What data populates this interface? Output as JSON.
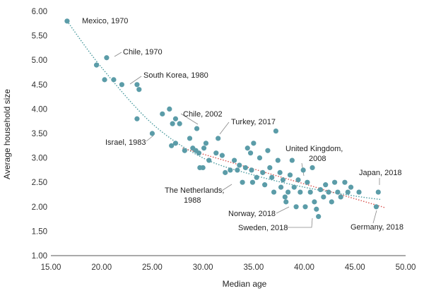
{
  "chart_data": {
    "type": "scatter",
    "title": "",
    "xlabel": "Median age",
    "ylabel": "Average household size",
    "xlim": [
      15,
      50
    ],
    "ylim": [
      1,
      6
    ],
    "grid": false,
    "legend": "none",
    "x_ticks": [
      "15.00",
      "20.00",
      "25.00",
      "30.00",
      "35.00",
      "40.00",
      "45.00",
      "50.00"
    ],
    "y_ticks": [
      "1.00",
      "1.50",
      "2.00",
      "2.50",
      "3.00",
      "3.50",
      "4.00",
      "4.50",
      "5.00",
      "5.50",
      "6.00"
    ],
    "point_color": "#5b9ca8",
    "points": [
      {
        "x": 16.6,
        "y": 5.8
      },
      {
        "x": 19.5,
        "y": 4.9
      },
      {
        "x": 20.5,
        "y": 5.05
      },
      {
        "x": 20.3,
        "y": 4.6
      },
      {
        "x": 21.2,
        "y": 4.6
      },
      {
        "x": 22.0,
        "y": 4.5
      },
      {
        "x": 23.5,
        "y": 4.5
      },
      {
        "x": 23.7,
        "y": 4.4
      },
      {
        "x": 23.5,
        "y": 3.8
      },
      {
        "x": 25.0,
        "y": 3.5
      },
      {
        "x": 26.0,
        "y": 3.9
      },
      {
        "x": 26.7,
        "y": 4.0
      },
      {
        "x": 27.0,
        "y": 3.7
      },
      {
        "x": 27.3,
        "y": 3.8
      },
      {
        "x": 27.7,
        "y": 3.7
      },
      {
        "x": 26.9,
        "y": 3.25
      },
      {
        "x": 27.3,
        "y": 3.3
      },
      {
        "x": 28.2,
        "y": 3.15
      },
      {
        "x": 28.7,
        "y": 3.4
      },
      {
        "x": 29.0,
        "y": 3.2
      },
      {
        "x": 29.4,
        "y": 3.6
      },
      {
        "x": 29.3,
        "y": 3.15
      },
      {
        "x": 29.6,
        "y": 3.1
      },
      {
        "x": 30.1,
        "y": 3.2
      },
      {
        "x": 30.3,
        "y": 3.3
      },
      {
        "x": 29.7,
        "y": 2.8
      },
      {
        "x": 30.0,
        "y": 2.8
      },
      {
        "x": 30.6,
        "y": 2.95
      },
      {
        "x": 31.3,
        "y": 3.1
      },
      {
        "x": 31.5,
        "y": 3.4
      },
      {
        "x": 31.9,
        "y": 3.05
      },
      {
        "x": 32.2,
        "y": 2.7
      },
      {
        "x": 32.7,
        "y": 2.75
      },
      {
        "x": 33.1,
        "y": 2.95
      },
      {
        "x": 33.4,
        "y": 2.75
      },
      {
        "x": 33.6,
        "y": 2.85
      },
      {
        "x": 33.9,
        "y": 2.5
      },
      {
        "x": 34.2,
        "y": 2.8
      },
      {
        "x": 34.4,
        "y": 3.2
      },
      {
        "x": 34.7,
        "y": 3.1
      },
      {
        "x": 35.0,
        "y": 3.3
      },
      {
        "x": 34.8,
        "y": 2.75
      },
      {
        "x": 34.9,
        "y": 2.5
      },
      {
        "x": 35.3,
        "y": 2.6
      },
      {
        "x": 35.6,
        "y": 3.0
      },
      {
        "x": 35.9,
        "y": 2.7
      },
      {
        "x": 36.1,
        "y": 2.45
      },
      {
        "x": 36.4,
        "y": 3.15
      },
      {
        "x": 36.6,
        "y": 2.8
      },
      {
        "x": 36.8,
        "y": 2.6
      },
      {
        "x": 37.0,
        "y": 2.3
      },
      {
        "x": 37.2,
        "y": 3.55
      },
      {
        "x": 37.4,
        "y": 2.95
      },
      {
        "x": 37.6,
        "y": 2.7
      },
      {
        "x": 37.7,
        "y": 2.4
      },
      {
        "x": 37.9,
        "y": 2.55
      },
      {
        "x": 38.1,
        "y": 2.2
      },
      {
        "x": 38.2,
        "y": 2.1
      },
      {
        "x": 38.4,
        "y": 2.3
      },
      {
        "x": 38.6,
        "y": 2.65
      },
      {
        "x": 38.8,
        "y": 2.95
      },
      {
        "x": 39.0,
        "y": 2.4
      },
      {
        "x": 39.2,
        "y": 2.0
      },
      {
        "x": 39.4,
        "y": 2.55
      },
      {
        "x": 39.6,
        "y": 2.3
      },
      {
        "x": 39.9,
        "y": 2.75
      },
      {
        "x": 40.1,
        "y": 2.0
      },
      {
        "x": 40.3,
        "y": 2.5
      },
      {
        "x": 40.6,
        "y": 2.3
      },
      {
        "x": 40.8,
        "y": 2.8
      },
      {
        "x": 41.0,
        "y": 2.1
      },
      {
        "x": 41.2,
        "y": 1.95
      },
      {
        "x": 41.4,
        "y": 1.8
      },
      {
        "x": 41.6,
        "y": 2.35
      },
      {
        "x": 41.9,
        "y": 2.2
      },
      {
        "x": 42.1,
        "y": 2.45
      },
      {
        "x": 42.4,
        "y": 2.3
      },
      {
        "x": 42.7,
        "y": 2.1
      },
      {
        "x": 43.0,
        "y": 2.5
      },
      {
        "x": 43.3,
        "y": 2.3
      },
      {
        "x": 43.6,
        "y": 2.2
      },
      {
        "x": 44.0,
        "y": 2.5
      },
      {
        "x": 44.3,
        "y": 2.3
      },
      {
        "x": 44.6,
        "y": 2.4
      },
      {
        "x": 45.4,
        "y": 2.3
      },
      {
        "x": 47.1,
        "y": 2.0
      },
      {
        "x": 47.3,
        "y": 2.3
      }
    ],
    "annotations": [
      {
        "text": "Mexico, 1970",
        "x": 16.6,
        "y": 5.8
      },
      {
        "text": "Chile, 1970",
        "x": 20.5,
        "y": 5.05
      },
      {
        "text": "South Korea, 1980",
        "x": 22.0,
        "y": 4.5
      },
      {
        "text": "Israel, 1983",
        "x": 25.0,
        "y": 3.5
      },
      {
        "text": "Chile, 2002",
        "x": 29.4,
        "y": 3.6
      },
      {
        "text": "Turkey, 2017",
        "x": 31.5,
        "y": 3.4
      },
      {
        "text": "United Kingdom, 2008",
        "x": 40.3,
        "y": 2.5
      },
      {
        "text": "Japan, 2018",
        "x": 47.3,
        "y": 2.3
      },
      {
        "text": "The Netherlands, 1988",
        "x": 33.9,
        "y": 2.5
      },
      {
        "text": "Norway, 2018",
        "x": 39.2,
        "y": 2.0
      },
      {
        "text": "Sweden, 2018",
        "x": 41.4,
        "y": 1.8
      },
      {
        "text": "Germany, 2018",
        "x": 47.1,
        "y": 2.0
      }
    ],
    "trendlines": [
      {
        "color": "#4a9a9e",
        "style": "dotted",
        "points": [
          [
            16.6,
            5.8
          ],
          [
            20,
            4.85
          ],
          [
            25,
            3.7
          ],
          [
            30,
            3.0
          ],
          [
            35,
            2.65
          ],
          [
            40,
            2.4
          ],
          [
            45,
            2.22
          ],
          [
            47.5,
            2.15
          ]
        ]
      },
      {
        "color": "#d9534f",
        "style": "dotted",
        "points": [
          [
            28,
            3.2
          ],
          [
            48,
            1.98
          ]
        ]
      }
    ]
  }
}
